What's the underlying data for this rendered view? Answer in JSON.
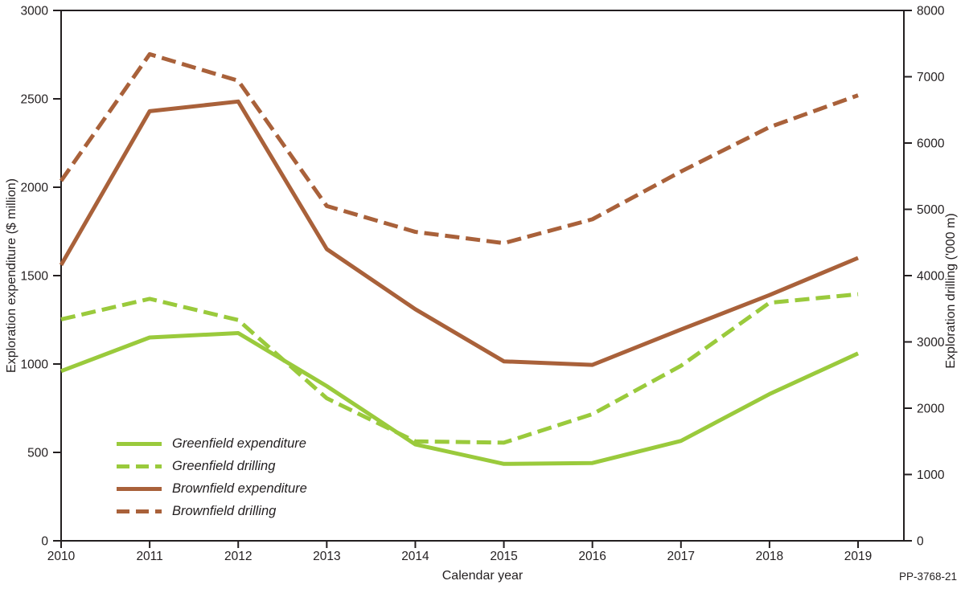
{
  "chart_data": {
    "type": "line",
    "xlabel": "Calendar year",
    "ylabel_left": "Exploration expenditure ($ million)",
    "ylabel_right": "Exploration drilling ('000 m)",
    "annotation": "PP-3768-21",
    "x": [
      2010,
      2011,
      2012,
      2013,
      2014,
      2015,
      2016,
      2017,
      2018,
      2019
    ],
    "left_axis": {
      "min": 0,
      "max": 3000,
      "ticks": [
        0,
        500,
        1000,
        1500,
        2000,
        2500,
        3000
      ]
    },
    "right_axis": {
      "min": 0,
      "max": 8000,
      "ticks": [
        0,
        1000,
        2000,
        3000,
        4000,
        5000,
        6000,
        7000,
        8000
      ]
    },
    "grid": false,
    "legend_position": "lower-left-inside",
    "colors": {
      "greenfield": "#9ACA3C",
      "brownfield": "#A9613A",
      "axis": "#231f20"
    },
    "series": [
      {
        "name": "Greenfield expenditure",
        "axis": "left",
        "style": "solid",
        "color": "#9ACA3C",
        "values": [
          960,
          1150,
          1175,
          875,
          545,
          435,
          440,
          565,
          830,
          1060
        ]
      },
      {
        "name": "Greenfield drilling",
        "axis": "right",
        "style": "dashed",
        "color": "#9ACA3C",
        "values": [
          3340,
          3650,
          3330,
          2150,
          1500,
          1480,
          1910,
          2640,
          3590,
          3720
        ]
      },
      {
        "name": "Brownfield expenditure",
        "axis": "left",
        "style": "solid",
        "color": "#A9613A",
        "values": [
          1560,
          2430,
          2485,
          1650,
          1310,
          1015,
          995,
          1195,
          1390,
          1600
        ]
      },
      {
        "name": "Brownfield drilling",
        "axis": "right",
        "style": "dashed",
        "color": "#A9613A",
        "values": [
          5430,
          7340,
          6940,
          5050,
          4660,
          4490,
          4850,
          5570,
          6240,
          6720
        ]
      }
    ]
  }
}
